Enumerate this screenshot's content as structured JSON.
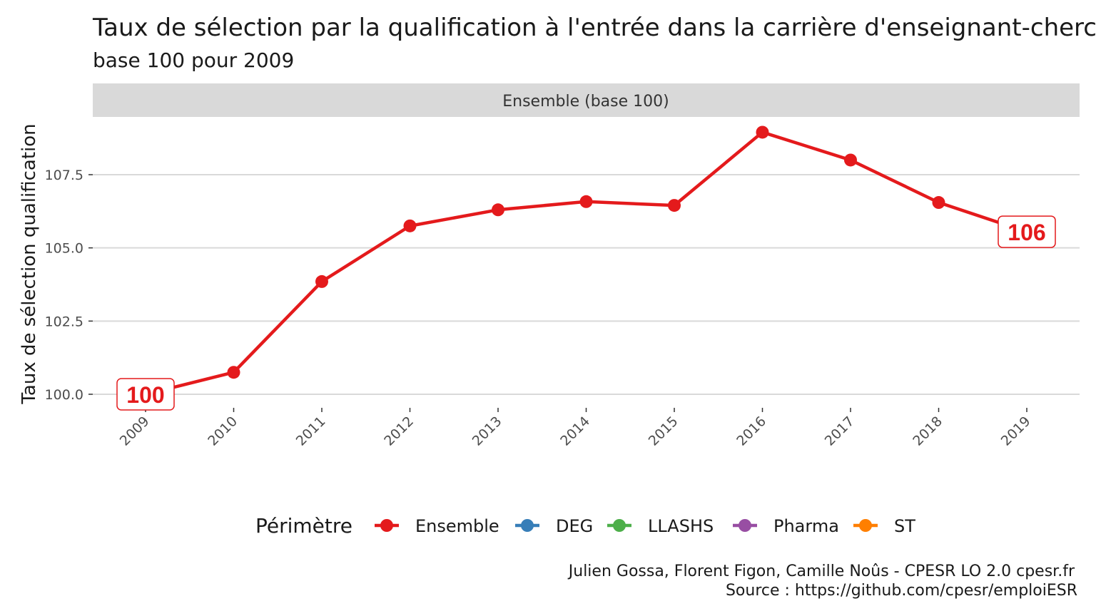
{
  "chart_data": {
    "type": "line",
    "title": "Taux de sélection par la qualification à l'entrée dans la carrière d'enseignant-chercheur",
    "subtitle": "base 100 pour 2009",
    "facet": "Ensemble (base 100)",
    "ylabel": "Taux de sélection qualification",
    "xlabel": "",
    "x": [
      "2009",
      "2010",
      "2011",
      "2012",
      "2013",
      "2014",
      "2015",
      "2016",
      "2017",
      "2018",
      "2019"
    ],
    "series": [
      {
        "name": "Ensemble",
        "color": "#e41a1c",
        "values": [
          100.0,
          100.75,
          103.85,
          105.75,
          106.3,
          106.58,
          106.45,
          108.95,
          108.0,
          106.55,
          105.55
        ]
      }
    ],
    "ylim": [
      99.2,
      109.5
    ],
    "yticks": [
      "100.0",
      "102.5",
      "105.0",
      "107.5"
    ],
    "ytick_values": [
      100.0,
      102.5,
      105.0,
      107.5
    ],
    "end_labels": [
      {
        "index": 0,
        "text": "100"
      },
      {
        "index": 10,
        "text": "106"
      }
    ],
    "legend": {
      "title": "Périmètre",
      "position": "bottom",
      "items": [
        {
          "label": "Ensemble",
          "color": "#e41a1c"
        },
        {
          "label": "DEG",
          "color": "#377eb8"
        },
        {
          "label": "LLASHS",
          "color": "#4daf4a"
        },
        {
          "label": "Pharma",
          "color": "#984ea3"
        },
        {
          "label": "ST",
          "color": "#ff7f00"
        }
      ]
    },
    "grid": true,
    "caption": [
      "Julien Gossa, Florent Figon, Camille Noûs - CPESR LO 2.0 cpesr.fr",
      "Source : https://github.com/cpesr/emploiESR"
    ]
  }
}
